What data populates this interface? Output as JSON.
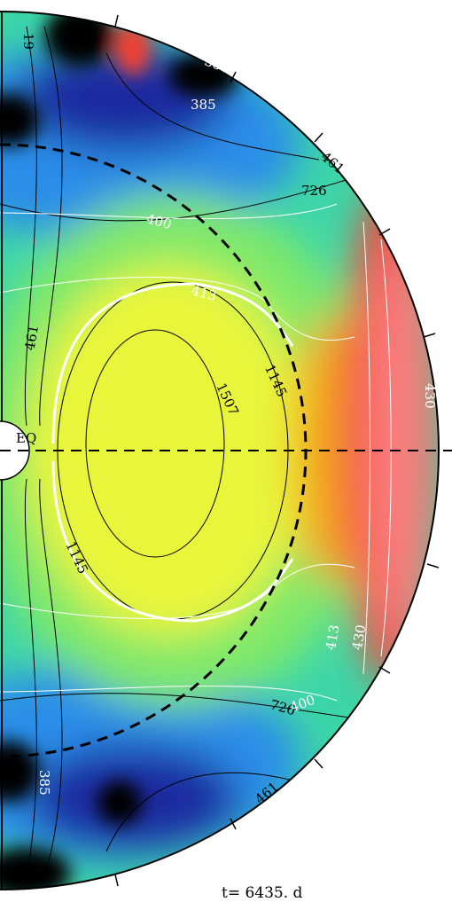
{
  "time_label": "t= 6435. d",
  "equator_label": "EQ",
  "black_contour_labels": [
    "726",
    "1507",
    "1145",
    "1145",
    "726",
    "461",
    "461",
    "461",
    "19"
  ],
  "white_contour_labels": [
    "400",
    "413",
    "385",
    "380",
    "430",
    "400",
    "413",
    "430",
    "385"
  ]
}
